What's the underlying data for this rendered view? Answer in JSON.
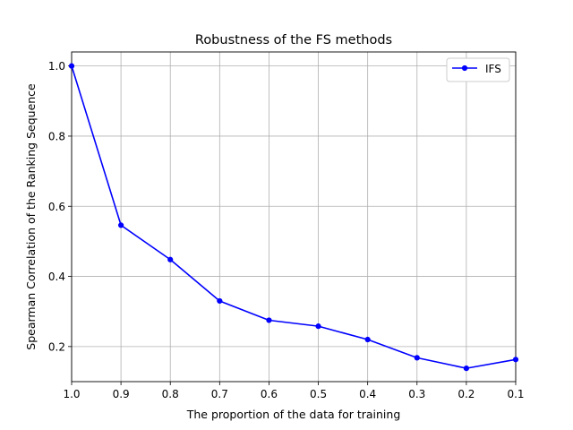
{
  "chart_data": {
    "type": "line",
    "title": "Robustness of the FS methods",
    "xlabel": "The proportion of the data for training",
    "ylabel": "Spearman Correlation of the Ranking Sequence",
    "xlim": [
      1.0,
      0.1
    ],
    "ylim": [
      0.1,
      1.04
    ],
    "x_reversed": true,
    "xticks": [
      "1.0",
      "0.9",
      "0.8",
      "0.7",
      "0.6",
      "0.5",
      "0.4",
      "0.3",
      "0.2",
      "0.1"
    ],
    "xtick_values": [
      1.0,
      0.9,
      0.8,
      0.7,
      0.6,
      0.5,
      0.4,
      0.3,
      0.2,
      0.1
    ],
    "yticks": [
      "0.2",
      "0.4",
      "0.6",
      "0.8",
      "1.0"
    ],
    "ytick_values": [
      0.2,
      0.4,
      0.6,
      0.8,
      1.0
    ],
    "grid": true,
    "legend_position": "top-right",
    "series": [
      {
        "name": "IFS",
        "color": "#0000ff",
        "x": [
          1.0,
          0.9,
          0.8,
          0.7,
          0.6,
          0.5,
          0.4,
          0.3,
          0.2,
          0.1
        ],
        "y": [
          1.0,
          0.546,
          0.448,
          0.33,
          0.275,
          0.258,
          0.22,
          0.168,
          0.138,
          0.163
        ]
      }
    ]
  }
}
